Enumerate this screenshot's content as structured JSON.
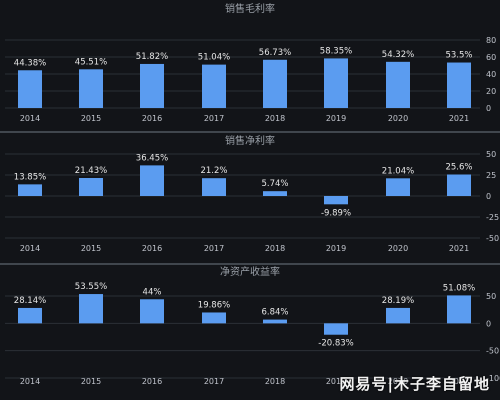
{
  "chart_data": [
    {
      "type": "bar",
      "title": "销售毛利率",
      "categories": [
        "2014",
        "2015",
        "2016",
        "2017",
        "2018",
        "2019",
        "2020",
        "2021"
      ],
      "values": [
        44.38,
        45.51,
        51.82,
        51.04,
        56.73,
        58.35,
        54.32,
        53.5
      ],
      "labels": [
        "44.38%",
        "45.51%",
        "51.82%",
        "51.04%",
        "56.73%",
        "58.35%",
        "54.32%",
        "53.5%"
      ],
      "ylim": [
        0,
        80
      ],
      "yticks": [
        0,
        20,
        40,
        60,
        80
      ],
      "grid": true
    },
    {
      "type": "bar",
      "title": "销售净利率",
      "categories": [
        "2014",
        "2015",
        "2016",
        "2017",
        "2018",
        "2019",
        "2020",
        "2021"
      ],
      "values": [
        13.85,
        21.43,
        36.45,
        21.2,
        5.74,
        -9.89,
        21.04,
        25.6
      ],
      "labels": [
        "13.85%",
        "21.43%",
        "36.45%",
        "21.2%",
        "5.74%",
        "-9.89%",
        "21.04%",
        "25.6%"
      ],
      "ylim": [
        -50,
        50
      ],
      "yticks": [
        -50,
        -25,
        0,
        25,
        50
      ],
      "grid": true
    },
    {
      "type": "bar",
      "title": "净资产收益率",
      "categories": [
        "2014",
        "2015",
        "2016",
        "2017",
        "2018",
        "2019",
        "2020",
        "2021"
      ],
      "values": [
        28.14,
        53.55,
        44,
        19.86,
        6.84,
        -20.83,
        28.19,
        51.08
      ],
      "labels": [
        "28.14%",
        "53.55%",
        "44%",
        "19.86%",
        "6.84%",
        "-20.83%",
        "28.19%",
        "51.08%"
      ],
      "ylim": [
        -100,
        50
      ],
      "yticks": [
        -100,
        -50,
        0,
        50
      ],
      "grid": true
    }
  ],
  "watermark": "网易号|木子李自留地",
  "colors": {
    "background": "#121418",
    "bar": "#5b9cf0",
    "text": "#e6e6e6",
    "axis_text": "#c0c4cc",
    "title": "#9aa0a8",
    "grid": "#2b2f36",
    "divider": "#6f7782"
  }
}
